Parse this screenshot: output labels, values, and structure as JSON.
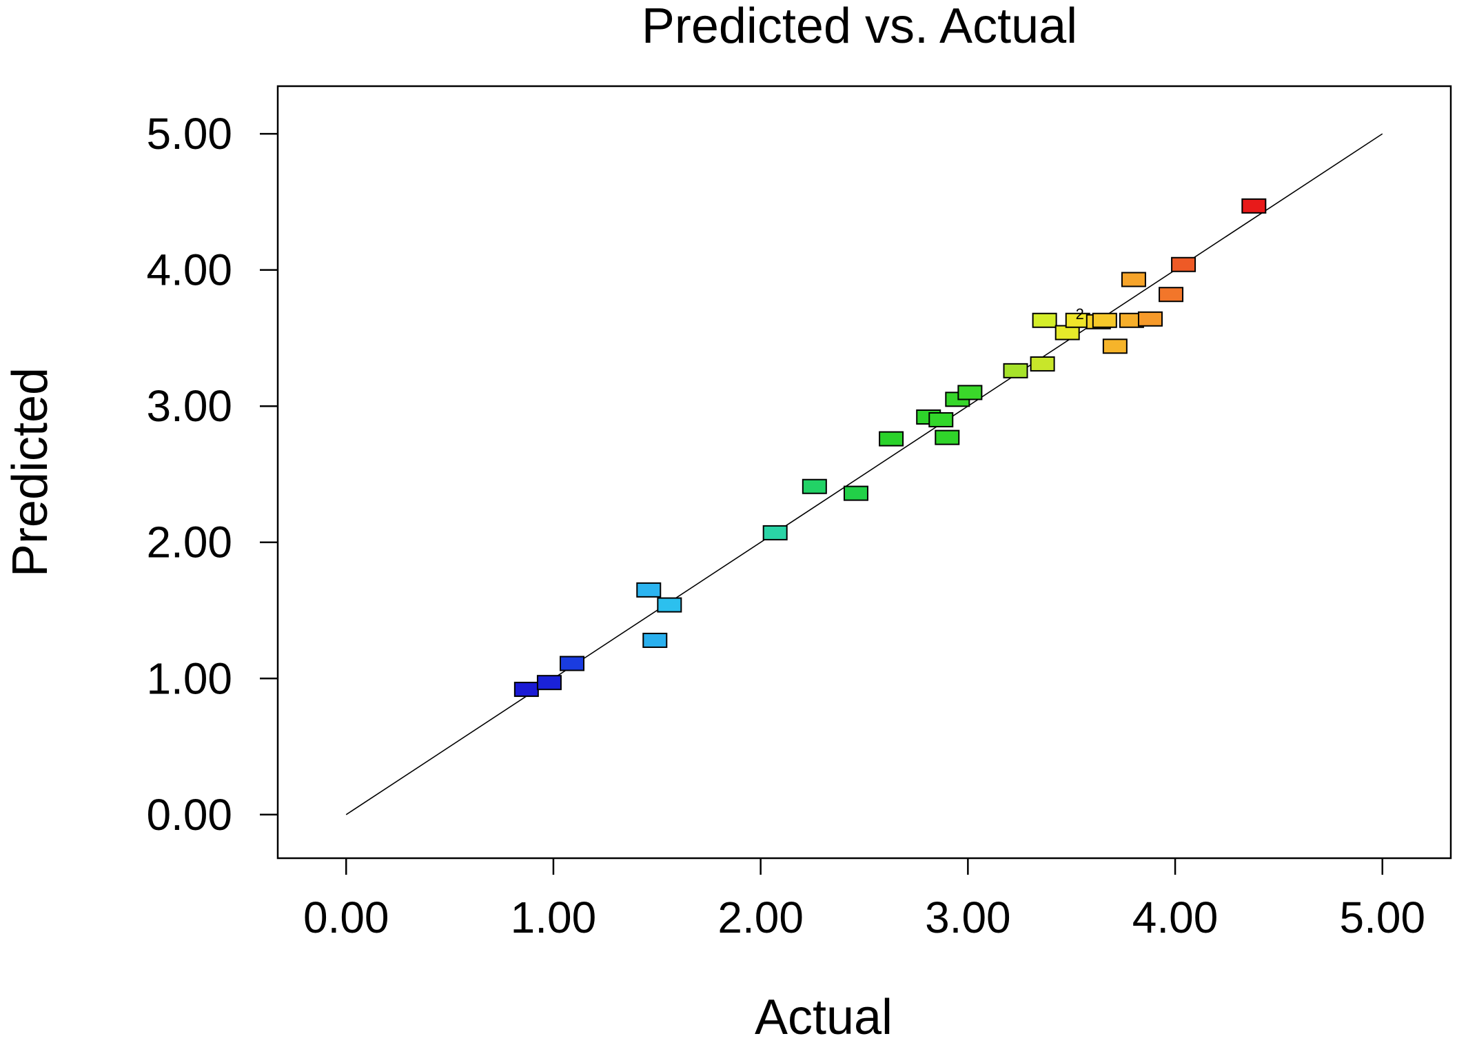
{
  "chart_data": {
    "type": "scatter",
    "title": "Predicted vs. Actual",
    "xlabel": "Actual",
    "ylabel": "Predicted",
    "xlim": [
      -0.33,
      5.33
    ],
    "ylim": [
      -0.32,
      5.35
    ],
    "x_ticks": [
      "0.00",
      "1.00",
      "2.00",
      "3.00",
      "4.00",
      "5.00"
    ],
    "y_ticks": [
      "0.00",
      "1.00",
      "2.00",
      "3.00",
      "4.00",
      "5.00"
    ],
    "reference_line": {
      "from": [
        0,
        0
      ],
      "to": [
        5,
        5
      ]
    },
    "annotation": {
      "text": "2",
      "x": 3.54,
      "y": 3.67
    },
    "points": [
      {
        "x": 0.87,
        "y": 0.92,
        "color": "#1a1ad4"
      },
      {
        "x": 0.98,
        "y": 0.97,
        "color": "#1a22d8"
      },
      {
        "x": 1.09,
        "y": 1.11,
        "color": "#1a3ce0"
      },
      {
        "x": 1.46,
        "y": 1.65,
        "color": "#2bb4f0"
      },
      {
        "x": 1.49,
        "y": 1.28,
        "color": "#2ab0ee"
      },
      {
        "x": 1.56,
        "y": 1.54,
        "color": "#2cc0ee"
      },
      {
        "x": 2.07,
        "y": 2.07,
        "color": "#2ad4a6"
      },
      {
        "x": 2.26,
        "y": 2.41,
        "color": "#22d266"
      },
      {
        "x": 2.46,
        "y": 2.36,
        "color": "#22d048"
      },
      {
        "x": 2.63,
        "y": 2.76,
        "color": "#2ad22a"
      },
      {
        "x": 2.81,
        "y": 2.92,
        "color": "#2ed42a"
      },
      {
        "x": 2.87,
        "y": 2.9,
        "color": "#32d62a"
      },
      {
        "x": 2.9,
        "y": 2.77,
        "color": "#30d42a"
      },
      {
        "x": 2.95,
        "y": 3.05,
        "color": "#36d62a"
      },
      {
        "x": 3.01,
        "y": 3.1,
        "color": "#3ad82a"
      },
      {
        "x": 3.23,
        "y": 3.26,
        "color": "#a6e22a"
      },
      {
        "x": 3.36,
        "y": 3.31,
        "color": "#c8e62a"
      },
      {
        "x": 3.37,
        "y": 3.63,
        "color": "#d4ee2a"
      },
      {
        "x": 3.48,
        "y": 3.54,
        "color": "#e6ea2a"
      },
      {
        "x": 3.53,
        "y": 3.63,
        "color": "#f0e62a"
      },
      {
        "x": 3.63,
        "y": 3.62,
        "color": "#f6d22a"
      },
      {
        "x": 3.66,
        "y": 3.63,
        "color": "#f6c82a"
      },
      {
        "x": 3.71,
        "y": 3.44,
        "color": "#f6b42a"
      },
      {
        "x": 3.79,
        "y": 3.63,
        "color": "#f6ae2a"
      },
      {
        "x": 3.8,
        "y": 3.93,
        "color": "#f6a42a"
      },
      {
        "x": 3.88,
        "y": 3.64,
        "color": "#f69a2a"
      },
      {
        "x": 3.98,
        "y": 3.82,
        "color": "#f2762a"
      },
      {
        "x": 4.04,
        "y": 4.04,
        "color": "#ee5a26"
      },
      {
        "x": 4.38,
        "y": 4.47,
        "color": "#e81a1a"
      }
    ]
  }
}
